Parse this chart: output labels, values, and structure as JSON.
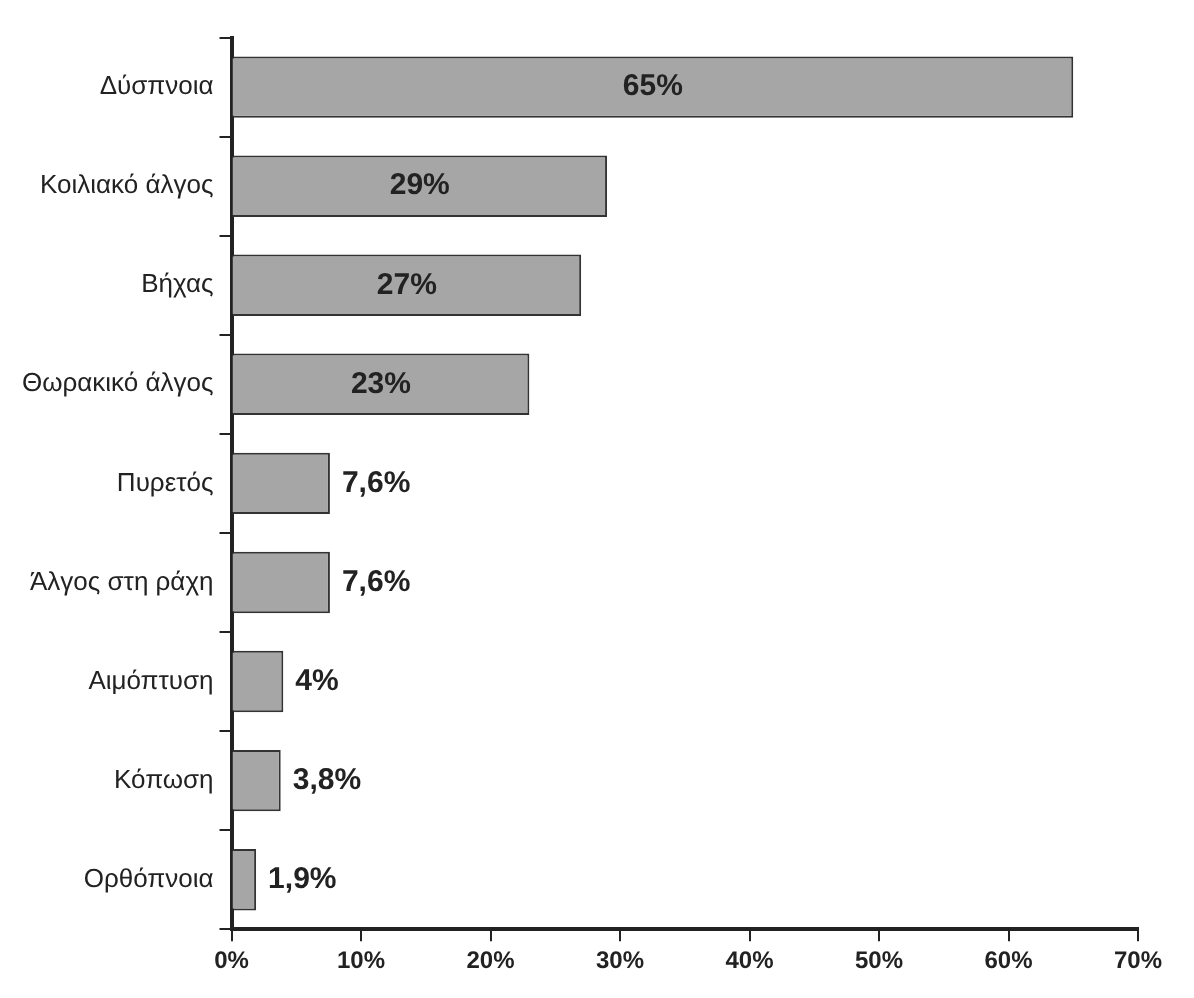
{
  "chart_data": {
    "type": "bar",
    "orientation": "horizontal",
    "categories": [
      "Δύσπνοια",
      "Κοιλιακό άλγος",
      "Βήχας",
      "Θωρακικό άλγος",
      "Πυρετός",
      "Άλγος στη ράχη",
      "Αιμόπτυση",
      "Κόπωση",
      "Ορθόπνοια"
    ],
    "values": [
      65,
      29,
      27,
      23,
      7.6,
      7.6,
      4,
      3.8,
      1.9
    ],
    "value_labels": [
      "65%",
      "29%",
      "27%",
      "23%",
      "7,6%",
      "7,6%",
      "4%",
      "3,8%",
      "1,9%"
    ],
    "color": "#a6a6a6",
    "xlim": [
      0,
      70
    ],
    "xticks": [
      {
        "value": 0,
        "label": "0%"
      },
      {
        "value": 10,
        "label": "10%"
      },
      {
        "value": 20,
        "label": "20%"
      },
      {
        "value": 30,
        "label": "30%"
      },
      {
        "value": 40,
        "label": "40%"
      },
      {
        "value": 50,
        "label": "50%"
      },
      {
        "value": 60,
        "label": "60%"
      },
      {
        "value": 70,
        "label": "70%"
      }
    ],
    "grid": false,
    "legend": false
  }
}
